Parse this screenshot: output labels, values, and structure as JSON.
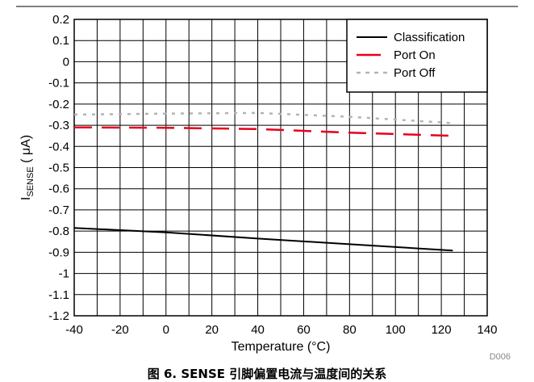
{
  "caption": "图 6. SENSE 引脚偏置电流与温度间的关系",
  "note": "D006",
  "chart_data": {
    "type": "line",
    "xlabel": "Temperature (°C)",
    "ylabel_main": "I",
    "ylabel_sub": "SENSE",
    "ylabel_unit": " ( μA)",
    "xlim": [
      -40,
      140
    ],
    "ylim": [
      -1.2,
      0.2
    ],
    "xticks": [
      "-40",
      "-20",
      "0",
      "20",
      "40",
      "60",
      "80",
      "100",
      "120",
      "140"
    ],
    "yticks": [
      "0.2",
      "0.1",
      "0",
      "-0.1",
      "-0.2",
      "-0.3",
      "-0.4",
      "-0.5",
      "-0.6",
      "-0.7",
      "-0.8",
      "-0.9",
      "-1",
      "-1.1",
      "-1.2"
    ],
    "grid": true,
    "legend_position": "top-right",
    "series": [
      {
        "name": "Classification",
        "color": "#000000",
        "style": "solid",
        "x": [
          -40,
          0,
          40,
          80,
          125
        ],
        "y": [
          -0.785,
          -0.806,
          -0.835,
          -0.862,
          -0.892
        ]
      },
      {
        "name": "Port On",
        "color": "#e8001c",
        "style": "dashed",
        "x": [
          -40,
          0,
          40,
          80,
          125
        ],
        "y": [
          -0.31,
          -0.312,
          -0.318,
          -0.335,
          -0.35
        ]
      },
      {
        "name": "Port Off",
        "color": "#b4b4b4",
        "style": "dotted",
        "x": [
          -40,
          0,
          40,
          80,
          125
        ],
        "y": [
          -0.25,
          -0.245,
          -0.242,
          -0.26,
          -0.29
        ]
      }
    ]
  }
}
